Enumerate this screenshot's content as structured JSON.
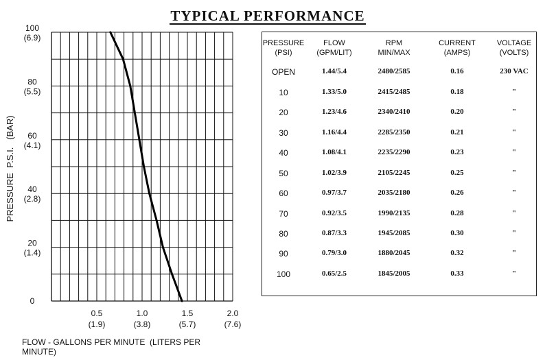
{
  "title": "TYPICAL  PERFORMANCE",
  "chart_data": {
    "type": "line",
    "title": "",
    "xlabel": "FLOW - GALLONS PER MINUTE  (LITERS PER MINUTE)",
    "ylabel": "PRESSURE  P.S.I.   (BAR)",
    "xlim": [
      0,
      2.0
    ],
    "ylim": [
      0,
      100
    ],
    "x_ticks": [
      {
        "value": 0.5,
        "label": "0.5",
        "sub": "(1.9)"
      },
      {
        "value": 1.0,
        "label": "1.0",
        "sub": "(3.8)"
      },
      {
        "value": 1.5,
        "label": "1.5",
        "sub": "(5.7)"
      },
      {
        "value": 2.0,
        "label": "2.0",
        "sub": "(7.6)"
      }
    ],
    "y_ticks": [
      {
        "value": 0,
        "label": "0",
        "sub": ""
      },
      {
        "value": 20,
        "label": "20",
        "sub": "(1.4)"
      },
      {
        "value": 40,
        "label": "40",
        "sub": "(2.8)"
      },
      {
        "value": 60,
        "label": "60",
        "sub": "(4.1)"
      },
      {
        "value": 80,
        "label": "80",
        "sub": "(5.5)"
      },
      {
        "value": 100,
        "label": "100",
        "sub": "(6.9)"
      }
    ],
    "grid": true,
    "series": [
      {
        "name": "",
        "x": [
          0.65,
          0.79,
          0.87,
          0.92,
          0.97,
          1.02,
          1.08,
          1.16,
          1.23,
          1.33,
          1.44
        ],
        "y": [
          100,
          90,
          80,
          70,
          60,
          50,
          40,
          30,
          20,
          10,
          0
        ]
      }
    ]
  },
  "table": {
    "headers": [
      [
        "PRESSURE",
        "(PSI)"
      ],
      [
        "FLOW",
        "(GPM/LIT)"
      ],
      [
        "RPM",
        "MIN/MAX"
      ],
      [
        "CURRENT",
        "(AMPS)"
      ],
      [
        "VOLTAGE",
        "(VOLTS)"
      ]
    ],
    "rows": [
      [
        "OPEN",
        "1.44/5.4",
        "2480/2585",
        "0.16",
        "230 VAC"
      ],
      [
        "10",
        "1.33/5.0",
        "2415/2485",
        "0.18",
        "\""
      ],
      [
        "20",
        "1.23/4.6",
        "2340/2410",
        "0.20",
        "\""
      ],
      [
        "30",
        "1.16/4.4",
        "2285/2350",
        "0.21",
        "\""
      ],
      [
        "40",
        "1.08/4.1",
        "2235/2290",
        "0.23",
        "\""
      ],
      [
        "50",
        "1.02/3.9",
        "2105/2245",
        "0.25",
        "\""
      ],
      [
        "60",
        "0.97/3.7",
        "2035/2180",
        "0.26",
        "\""
      ],
      [
        "70",
        "0.92/3.5",
        "1990/2135",
        "0.28",
        "\""
      ],
      [
        "80",
        "0.87/3.3",
        "1945/2085",
        "0.30",
        "\""
      ],
      [
        "90",
        "0.79/3.0",
        "1880/2045",
        "0.32",
        "\""
      ],
      [
        "100",
        "0.65/2.5",
        "1845/2005",
        "0.33",
        "\""
      ]
    ]
  }
}
